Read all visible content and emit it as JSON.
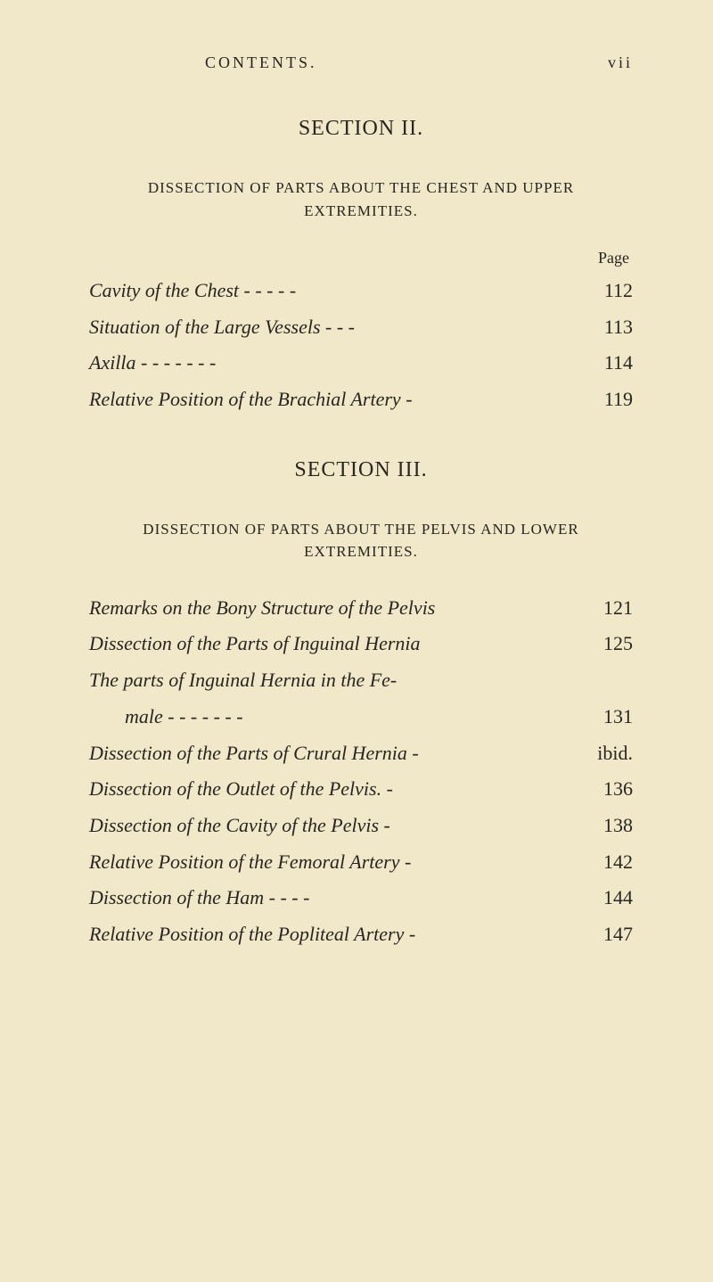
{
  "header": {
    "running_head": "CONTENTS.",
    "page_number": "vii"
  },
  "section2": {
    "title": "SECTION II.",
    "subtitle": "DISSECTION OF PARTS ABOUT THE CHEST AND UPPER EXTREMITIES.",
    "page_label": "Page",
    "entries": [
      {
        "title": "Cavity of the Chest  -     -     -     -     -",
        "page": "112"
      },
      {
        "title": "Situation of the Large Vessels   -     -     -",
        "page": "113"
      },
      {
        "title": "Axilla    -     -     -     -     -     -     -",
        "page": "114"
      },
      {
        "title": "Relative Position of the Brachial Artery   -",
        "page": "119"
      }
    ]
  },
  "section3": {
    "title": "SECTION III.",
    "subtitle": "DISSECTION OF PARTS ABOUT THE PELVIS AND LOWER EXTREMITIES.",
    "entries": [
      {
        "title": "Remarks on the Bony Structure of the Pelvis",
        "page": "121"
      },
      {
        "title": "Dissection of the Parts of Inguinal Hernia",
        "page": "125"
      },
      {
        "title_line1": "The parts of Inguinal Hernia in the Fe-",
        "title_line2": "male    -     -     -     -     -     -     -",
        "page": "131"
      },
      {
        "title": "Dissection of the Parts of Crural Hernia   -",
        "page": "ibid."
      },
      {
        "title": "Dissection of the Outlet of the Pelvis.        -",
        "page": "136"
      },
      {
        "title": "Dissection of the Cavity of the Pelvis        -",
        "page": "138"
      },
      {
        "title": "Relative Position of the Femoral Artery   -",
        "page": "142"
      },
      {
        "title": "Dissection of the Ham     -     -     -     -",
        "page": "144"
      },
      {
        "title": "Relative Position of the Popliteal Artery   -",
        "page": "147"
      }
    ]
  }
}
